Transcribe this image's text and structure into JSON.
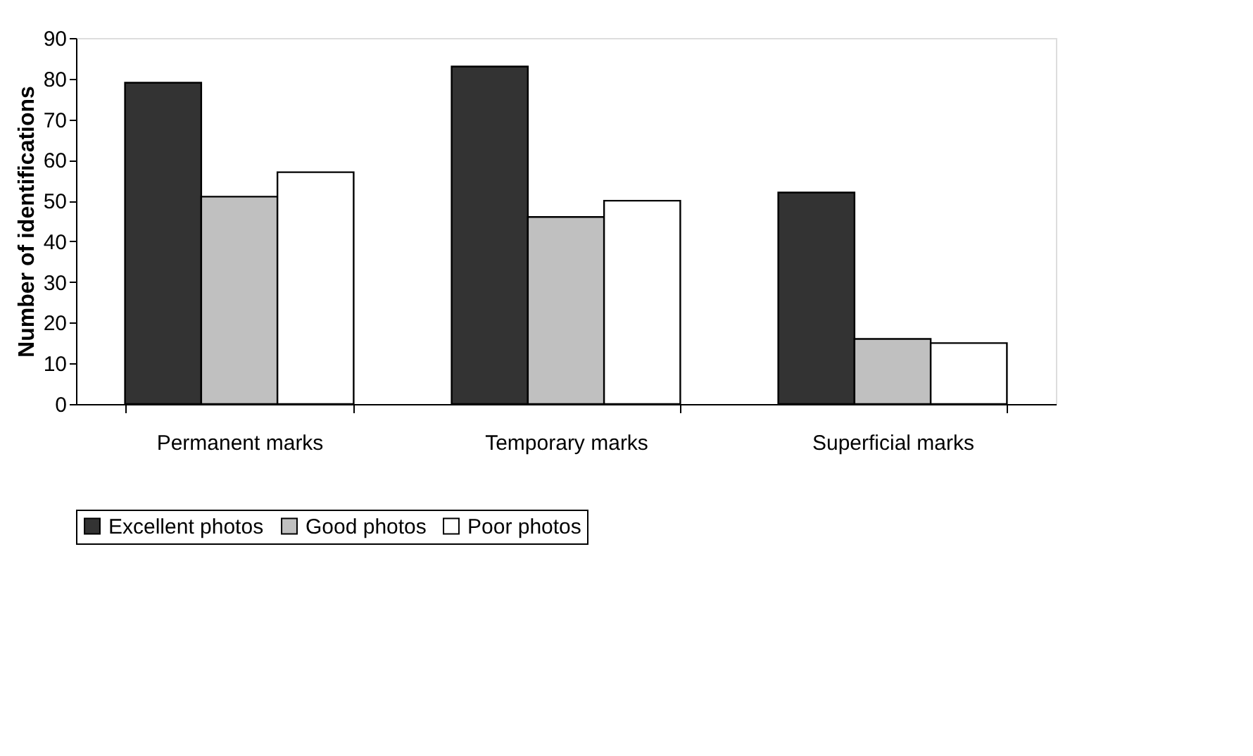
{
  "chart_data": {
    "type": "bar",
    "ylabel": "Number of identifications",
    "categories": [
      "Permanent marks",
      "Temporary marks",
      "Superficial marks"
    ],
    "series": [
      {
        "name": "Excellent photos",
        "color": "#333333",
        "values": [
          79,
          83,
          52
        ]
      },
      {
        "name": "Good photos",
        "color": "#c0c0c0",
        "values": [
          51,
          46,
          16
        ]
      },
      {
        "name": "Poor photos",
        "color": "#ffffff",
        "values": [
          57,
          50,
          15
        ]
      }
    ],
    "ylim": [
      0,
      90
    ],
    "yticks": [
      0,
      10,
      20,
      30,
      40,
      50,
      60,
      70,
      80,
      90
    ],
    "grid": false,
    "legend": "bottom"
  }
}
